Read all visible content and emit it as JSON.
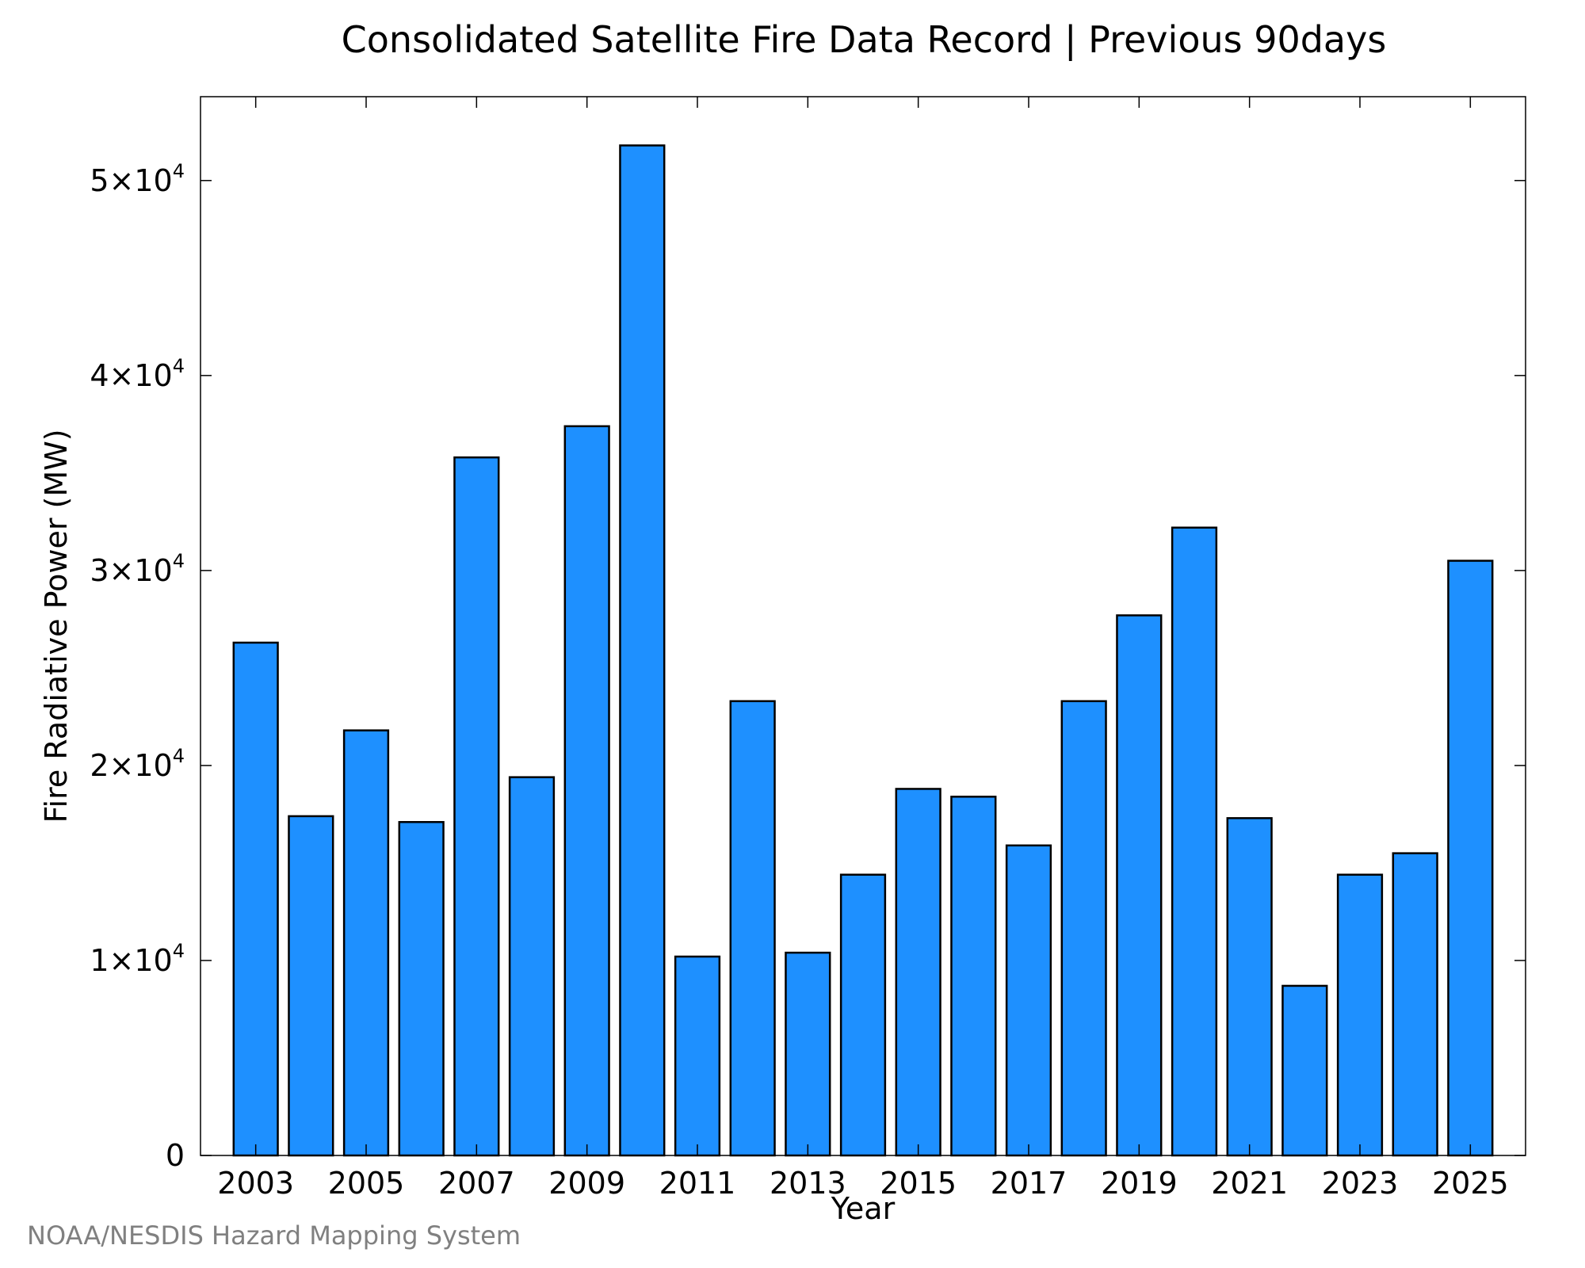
{
  "chart_data": {
    "type": "bar",
    "title": "Consolidated Satellite Fire Data Record | Previous 90days",
    "xlabel": "Year",
    "ylabel": "Fire Radiative Power (MW)",
    "categories": [
      2003,
      2004,
      2005,
      2006,
      2007,
      2008,
      2009,
      2010,
      2011,
      2012,
      2013,
      2014,
      2015,
      2016,
      2017,
      2018,
      2019,
      2020,
      2021,
      2022,
      2023,
      2024,
      2025
    ],
    "values": [
      26300,
      17400,
      21800,
      17100,
      35800,
      19400,
      37400,
      51800,
      10200,
      23300,
      10400,
      14400,
      18800,
      18400,
      15900,
      23300,
      27700,
      32200,
      17300,
      8700,
      14400,
      15500,
      30500
    ],
    "xlim": [
      2002,
      2026
    ],
    "ylim": [
      0,
      54300
    ],
    "xticks": [
      2003,
      2005,
      2007,
      2009,
      2011,
      2013,
      2015,
      2017,
      2019,
      2021,
      2023,
      2025
    ],
    "xtick_labels": [
      "2003",
      "2005",
      "2007",
      "2009",
      "2011",
      "2013",
      "2015",
      "2017",
      "2019",
      "2021",
      "2023",
      "2025"
    ],
    "yticks": [
      0,
      10000,
      20000,
      30000,
      40000,
      50000
    ],
    "ytick_labels": [
      "0",
      "1×10",
      "2×10",
      "3×10",
      "4×10",
      "5×10"
    ],
    "ytick_exponent": "4",
    "grid": false,
    "bar_color": "#1e90ff",
    "edge_color": "#000000"
  },
  "credit": "NOAA/NESDIS Hazard Mapping System"
}
